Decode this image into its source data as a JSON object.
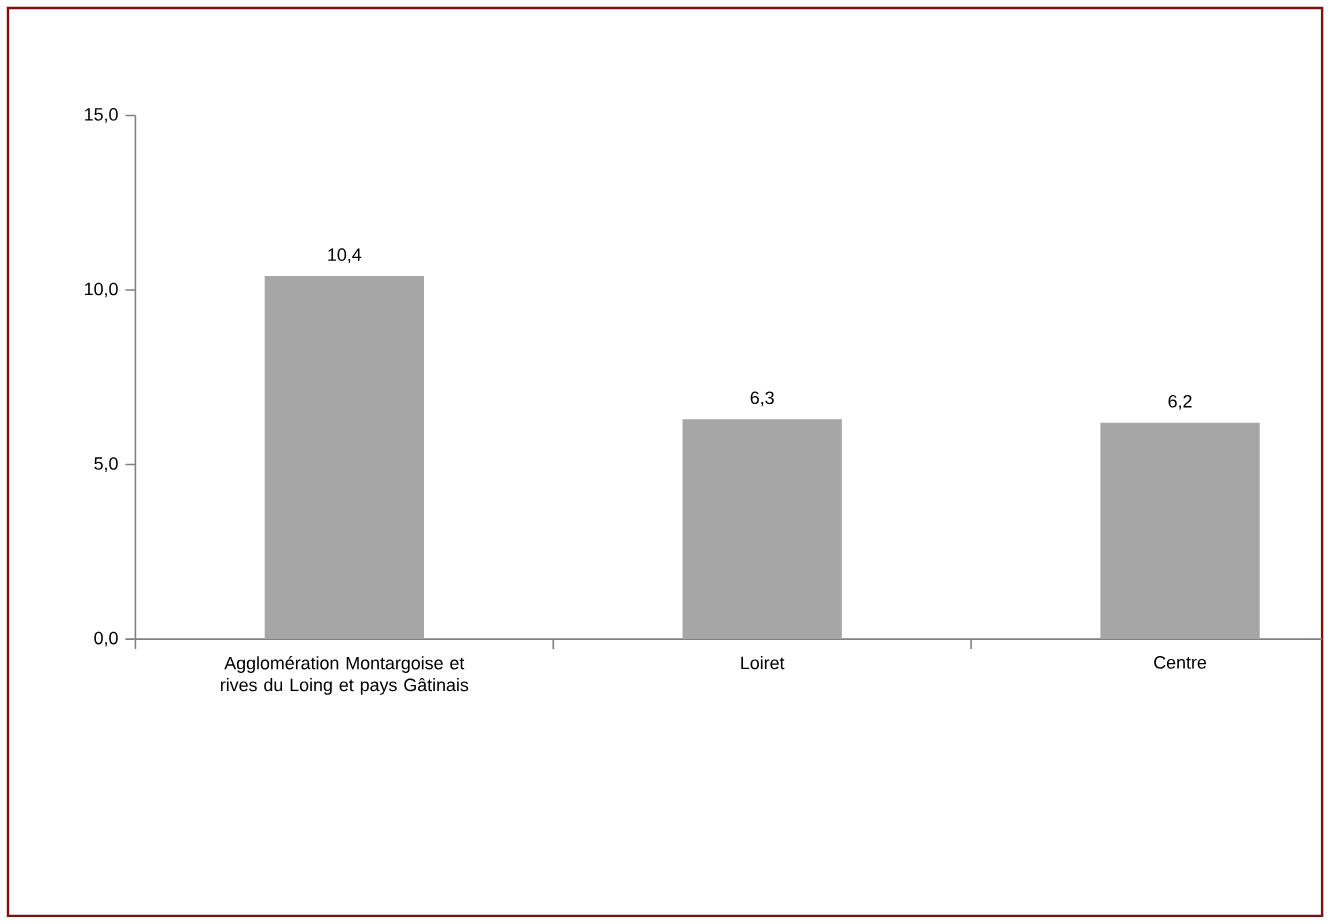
{
  "chart_data": {
    "type": "bar",
    "categories": [
      "Agglomération Montargoise et rives du Loing et pays Gâtinais",
      "Loiret",
      "Centre"
    ],
    "values": [
      10.4,
      6.3,
      6.2
    ],
    "value_labels": [
      "10,4",
      "6,3",
      "6,2"
    ],
    "color": "#a6a6a6",
    "ylim": [
      0,
      15
    ],
    "yticks": [
      {
        "value": 0,
        "label": "0,0"
      },
      {
        "value": 5,
        "label": "5,0"
      },
      {
        "value": 10,
        "label": "10,0"
      },
      {
        "value": 15,
        "label": "15,0"
      }
    ],
    "grid": false
  }
}
